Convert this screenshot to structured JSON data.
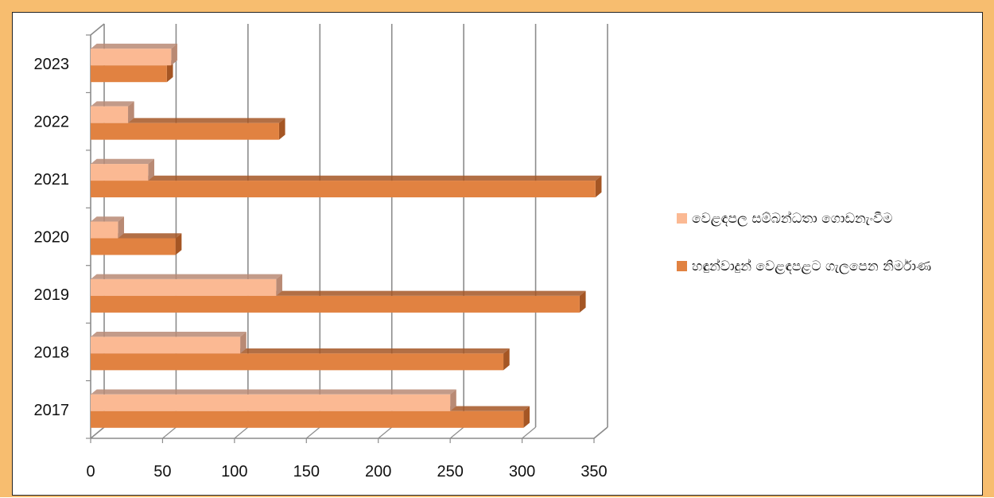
{
  "colors": {
    "frame": "#f7bd6f",
    "series1": "#fbb993",
    "series1_dark": "#b98a74",
    "series2": "#e18241",
    "series2_dark": "#a55624",
    "grid": "#8c8c8c"
  },
  "chart_data": {
    "type": "bar",
    "orientation": "horizontal",
    "style": "3d-clustered",
    "categories": [
      "2017",
      "2018",
      "2019",
      "2020",
      "2021",
      "2022",
      "2023"
    ],
    "series": [
      {
        "name": "වෙළඳපල සම්බන්ධතා ගොඩනැංවීම",
        "color": "#fbb993",
        "values": [
          250,
          104,
          129,
          19,
          40,
          26,
          56
        ]
      },
      {
        "name": "හඳුන්වාදුන් වෙළඳපළට ගැලපෙන නිර්මාණ",
        "color": "#e18241",
        "values": [
          301,
          287,
          340,
          59,
          351,
          131,
          53
        ]
      }
    ],
    "xlim": [
      0,
      350
    ],
    "xticks": [
      "0",
      "50",
      "100",
      "150",
      "200",
      "250",
      "300",
      "350"
    ],
    "grid": true,
    "legend_position": "right"
  }
}
